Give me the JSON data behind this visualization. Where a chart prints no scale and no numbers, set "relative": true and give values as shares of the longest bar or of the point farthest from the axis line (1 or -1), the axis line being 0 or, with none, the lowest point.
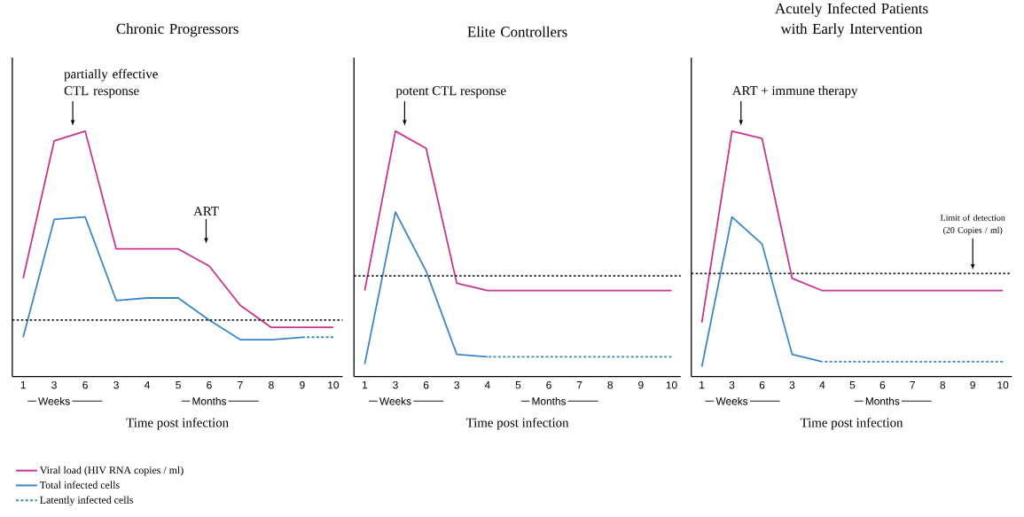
{
  "chart_data": [
    {
      "type": "line",
      "title": "Chronic Progressors",
      "xlabel": "Time post infection",
      "relative": true,
      "legend": "bottom left",
      "categories": [
        "1",
        "3",
        "6",
        "3",
        "4",
        "5",
        "6",
        "7",
        "8",
        "9",
        "10"
      ],
      "series": [
        {
          "name": "Viral load (HIV RNA copies / ml)",
          "color": "#c8348f",
          "values": [
            0.4,
            0.96,
            1.0,
            0.52,
            0.52,
            0.52,
            0.45,
            0.29,
            0.2,
            0.2,
            0.2
          ]
        },
        {
          "name": "Total infected cells",
          "color": "#3a86c8",
          "values": [
            0.16,
            0.64,
            0.65,
            0.31,
            0.32,
            0.32,
            0.23,
            0.15,
            0.15,
            0.16,
            null
          ]
        },
        {
          "name": "Latently infected cells",
          "color": "#3a86c8",
          "line_style": "dashed",
          "values": [
            null,
            null,
            null,
            null,
            null,
            null,
            null,
            null,
            null,
            0.16,
            0.16
          ]
        }
      ],
      "ref_lines": [
        {
          "axis": "y",
          "value": 0.23,
          "color": "#222222",
          "line_style": "dotted"
        }
      ],
      "annotations": [
        "partially effective CTL response",
        "ART",
        "Weeks",
        "Months"
      ]
    },
    {
      "type": "line",
      "title": "Elite Controllers",
      "xlabel": "Time post infection",
      "relative": true,
      "categories": [
        "1",
        "3",
        "6",
        "3",
        "4",
        "5",
        "6",
        "7",
        "8",
        "9",
        "10"
      ],
      "series": [
        {
          "color": "#c8348f",
          "values": [
            0.35,
            1.0,
            0.93,
            0.38,
            0.35,
            0.35,
            0.35,
            0.35,
            0.35,
            0.35,
            0.35
          ]
        },
        {
          "color": "#3a86c8",
          "values": [
            0.05,
            0.67,
            0.43,
            0.09,
            0.08,
            null,
            null,
            null,
            null,
            null,
            null
          ]
        },
        {
          "color": "#3a86c8",
          "line_style": "dashed",
          "values": [
            null,
            null,
            null,
            null,
            0.08,
            0.08,
            0.08,
            0.08,
            0.08,
            0.08,
            0.08
          ]
        }
      ],
      "ref_lines": [
        {
          "axis": "y",
          "value": 0.41,
          "color": "#222222",
          "line_style": "dotted"
        }
      ],
      "annotations": [
        "potent CTL response",
        "Weeks",
        "Months"
      ]
    },
    {
      "type": "line",
      "title": "Acutely Infected Patients with Early Intervention",
      "xlabel": "Time post infection",
      "relative": true,
      "categories": [
        "1",
        "3",
        "6",
        "3",
        "4",
        "5",
        "6",
        "7",
        "8",
        "9",
        "10"
      ],
      "series": [
        {
          "color": "#c8348f",
          "values": [
            0.22,
            1.0,
            0.97,
            0.4,
            0.35,
            0.35,
            0.35,
            0.35,
            0.35,
            0.35,
            0.35
          ]
        },
        {
          "color": "#3a86c8",
          "values": [
            0.04,
            0.65,
            0.54,
            0.09,
            0.06,
            null,
            null,
            null,
            null,
            null,
            null
          ]
        },
        {
          "color": "#3a86c8",
          "line_style": "dashed",
          "values": [
            null,
            null,
            null,
            null,
            0.06,
            0.06,
            0.06,
            0.06,
            0.06,
            0.06,
            0.06
          ]
        }
      ],
      "ref_lines": [
        {
          "axis": "y",
          "value": 0.42,
          "color": "#222222",
          "line_style": "dotted",
          "label": "Limit of detection (20 Copies / ml)"
        }
      ],
      "annotations": [
        "ART + immune therapy",
        "Weeks",
        "Months"
      ]
    }
  ]
}
